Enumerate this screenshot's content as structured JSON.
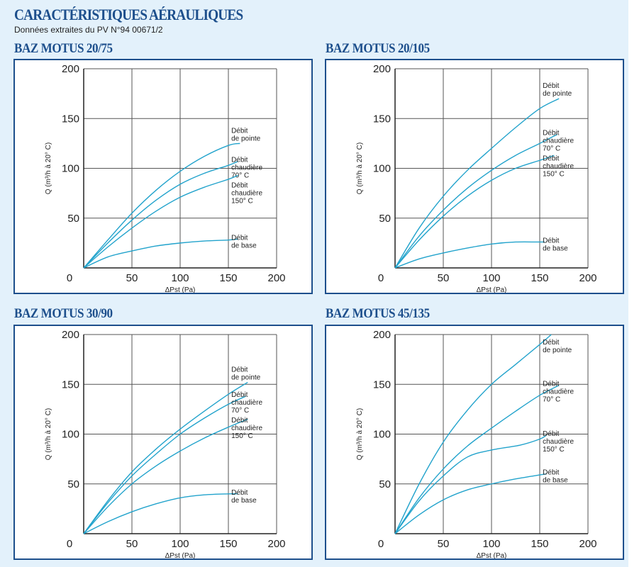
{
  "header": {
    "title": "CARACTÉRISTIQUES AÉRAULIQUES",
    "subtitle": "Données extraites du PV N°94 00671/2"
  },
  "colors": {
    "curve": "#22a3cc",
    "title": "#1d4f8c",
    "grid": "#555555"
  },
  "chart_data": [
    {
      "type": "line",
      "title": "BAZ MOTUS 20/75",
      "xlabel": "ΔPst (Pa)",
      "ylabel": "Q (m³/h à 20° C)",
      "xlim": [
        0,
        200
      ],
      "ylim": [
        0,
        200
      ],
      "xticks": [
        "0",
        "50",
        "100",
        "150",
        "200"
      ],
      "yticks": [
        "0",
        "50",
        "100",
        "150",
        "200"
      ],
      "grid": true,
      "series": [
        {
          "name": [
            "Débit",
            "de pointe"
          ],
          "x": [
            0,
            25,
            50,
            75,
            100,
            125,
            150,
            162
          ],
          "y": [
            0,
            28,
            55,
            78,
            97,
            112,
            123,
            125
          ]
        },
        {
          "name": [
            "Débit",
            "chaudière",
            "70° C"
          ],
          "x": [
            0,
            25,
            50,
            75,
            100,
            125,
            150,
            160
          ],
          "y": [
            0,
            25,
            48,
            68,
            84,
            95,
            103,
            107
          ]
        },
        {
          "name": [
            "Débit",
            "chaudière",
            "150° C"
          ],
          "x": [
            0,
            25,
            50,
            75,
            100,
            125,
            150,
            160
          ],
          "y": [
            0,
            21,
            40,
            57,
            71,
            81,
            89,
            93
          ]
        },
        {
          "name": [
            "Débit",
            "de base"
          ],
          "x": [
            0,
            25,
            50,
            75,
            100,
            125,
            150,
            160
          ],
          "y": [
            0,
            11,
            17,
            22,
            25,
            27,
            28,
            29
          ]
        }
      ]
    },
    {
      "type": "line",
      "title": "BAZ MOTUS 20/105",
      "xlabel": "ΔPst (Pa)",
      "ylabel": "Q (m³/h à 20° C)",
      "xlim": [
        0,
        200
      ],
      "ylim": [
        0,
        200
      ],
      "xticks": [
        "0",
        "50",
        "100",
        "150",
        "200"
      ],
      "yticks": [
        "0",
        "50",
        "100",
        "150",
        "200"
      ],
      "grid": true,
      "series": [
        {
          "name": [
            "Débit",
            "de pointe"
          ],
          "x": [
            0,
            25,
            50,
            75,
            100,
            125,
            150,
            170
          ],
          "y": [
            0,
            40,
            72,
            98,
            120,
            141,
            160,
            170
          ]
        },
        {
          "name": [
            "Débit",
            "chaudière",
            "70° C"
          ],
          "x": [
            0,
            25,
            50,
            75,
            100,
            125,
            150,
            168
          ],
          "y": [
            0,
            32,
            58,
            80,
            98,
            113,
            125,
            134
          ]
        },
        {
          "name": [
            "Débit",
            "chaudière",
            "150° C"
          ],
          "x": [
            0,
            25,
            50,
            75,
            100,
            125,
            150,
            165
          ],
          "y": [
            0,
            28,
            52,
            72,
            88,
            100,
            108,
            113
          ]
        },
        {
          "name": [
            "Débit",
            "de base"
          ],
          "x": [
            0,
            25,
            50,
            75,
            100,
            125,
            150,
            155
          ],
          "y": [
            0,
            9,
            15,
            20,
            24,
            26,
            26,
            26
          ]
        }
      ]
    },
    {
      "type": "line",
      "title": "BAZ MOTUS 30/90",
      "xlabel": "ΔPst (Pa)",
      "ylabel": "Q (m³/h à 20° C)",
      "xlim": [
        0,
        200
      ],
      "ylim": [
        0,
        200
      ],
      "xticks": [
        "0",
        "50",
        "100",
        "150",
        "200"
      ],
      "yticks": [
        "0",
        "50",
        "100",
        "150",
        "200"
      ],
      "grid": true,
      "series": [
        {
          "name": [
            "Débit",
            "de pointe"
          ],
          "x": [
            0,
            25,
            50,
            75,
            100,
            125,
            150,
            170
          ],
          "y": [
            0,
            33,
            62,
            85,
            105,
            123,
            140,
            152
          ]
        },
        {
          "name": [
            "Débit",
            "chaudière",
            "70° C"
          ],
          "x": [
            0,
            25,
            50,
            75,
            100,
            125,
            150,
            168
          ],
          "y": [
            0,
            31,
            58,
            80,
            100,
            116,
            130,
            138
          ]
        },
        {
          "name": [
            "Débit",
            "chaudière",
            "150° C"
          ],
          "x": [
            0,
            25,
            50,
            75,
            100,
            125,
            150,
            170
          ],
          "y": [
            0,
            27,
            50,
            68,
            83,
            96,
            107,
            115
          ]
        },
        {
          "name": [
            "Débit",
            "de base"
          ],
          "x": [
            0,
            25,
            50,
            75,
            100,
            125,
            150,
            160
          ],
          "y": [
            0,
            12,
            22,
            30,
            36,
            39,
            40,
            40
          ]
        }
      ]
    },
    {
      "type": "line",
      "title": "BAZ MOTUS 45/135",
      "xlabel": "ΔPst (Pa)",
      "ylabel": "Q (m³/h à 20° C)",
      "xlim": [
        0,
        200
      ],
      "ylim": [
        0,
        200
      ],
      "xticks": [
        "0",
        "50",
        "100",
        "150",
        "200"
      ],
      "yticks": [
        "0",
        "50",
        "100",
        "150",
        "200"
      ],
      "grid": true,
      "series": [
        {
          "name": [
            "Débit",
            "de pointe"
          ],
          "x": [
            0,
            25,
            50,
            75,
            100,
            125,
            150,
            162
          ],
          "y": [
            0,
            50,
            92,
            124,
            150,
            170,
            190,
            200
          ]
        },
        {
          "name": [
            "Débit",
            "chaudière",
            "70° C"
          ],
          "x": [
            0,
            25,
            50,
            75,
            100,
            125,
            150,
            170
          ],
          "y": [
            0,
            36,
            65,
            88,
            106,
            123,
            139,
            149
          ]
        },
        {
          "name": [
            "Débit",
            "chaudière",
            "150° C"
          ],
          "x": [
            0,
            25,
            50,
            75,
            100,
            130,
            150,
            157
          ],
          "y": [
            0,
            33,
            58,
            77,
            84,
            89,
            95,
            99
          ]
        },
        {
          "name": [
            "Débit",
            "de base"
          ],
          "x": [
            0,
            25,
            50,
            75,
            100,
            125,
            150,
            157
          ],
          "y": [
            0,
            19,
            34,
            44,
            50,
            55,
            59,
            60
          ]
        }
      ]
    }
  ]
}
